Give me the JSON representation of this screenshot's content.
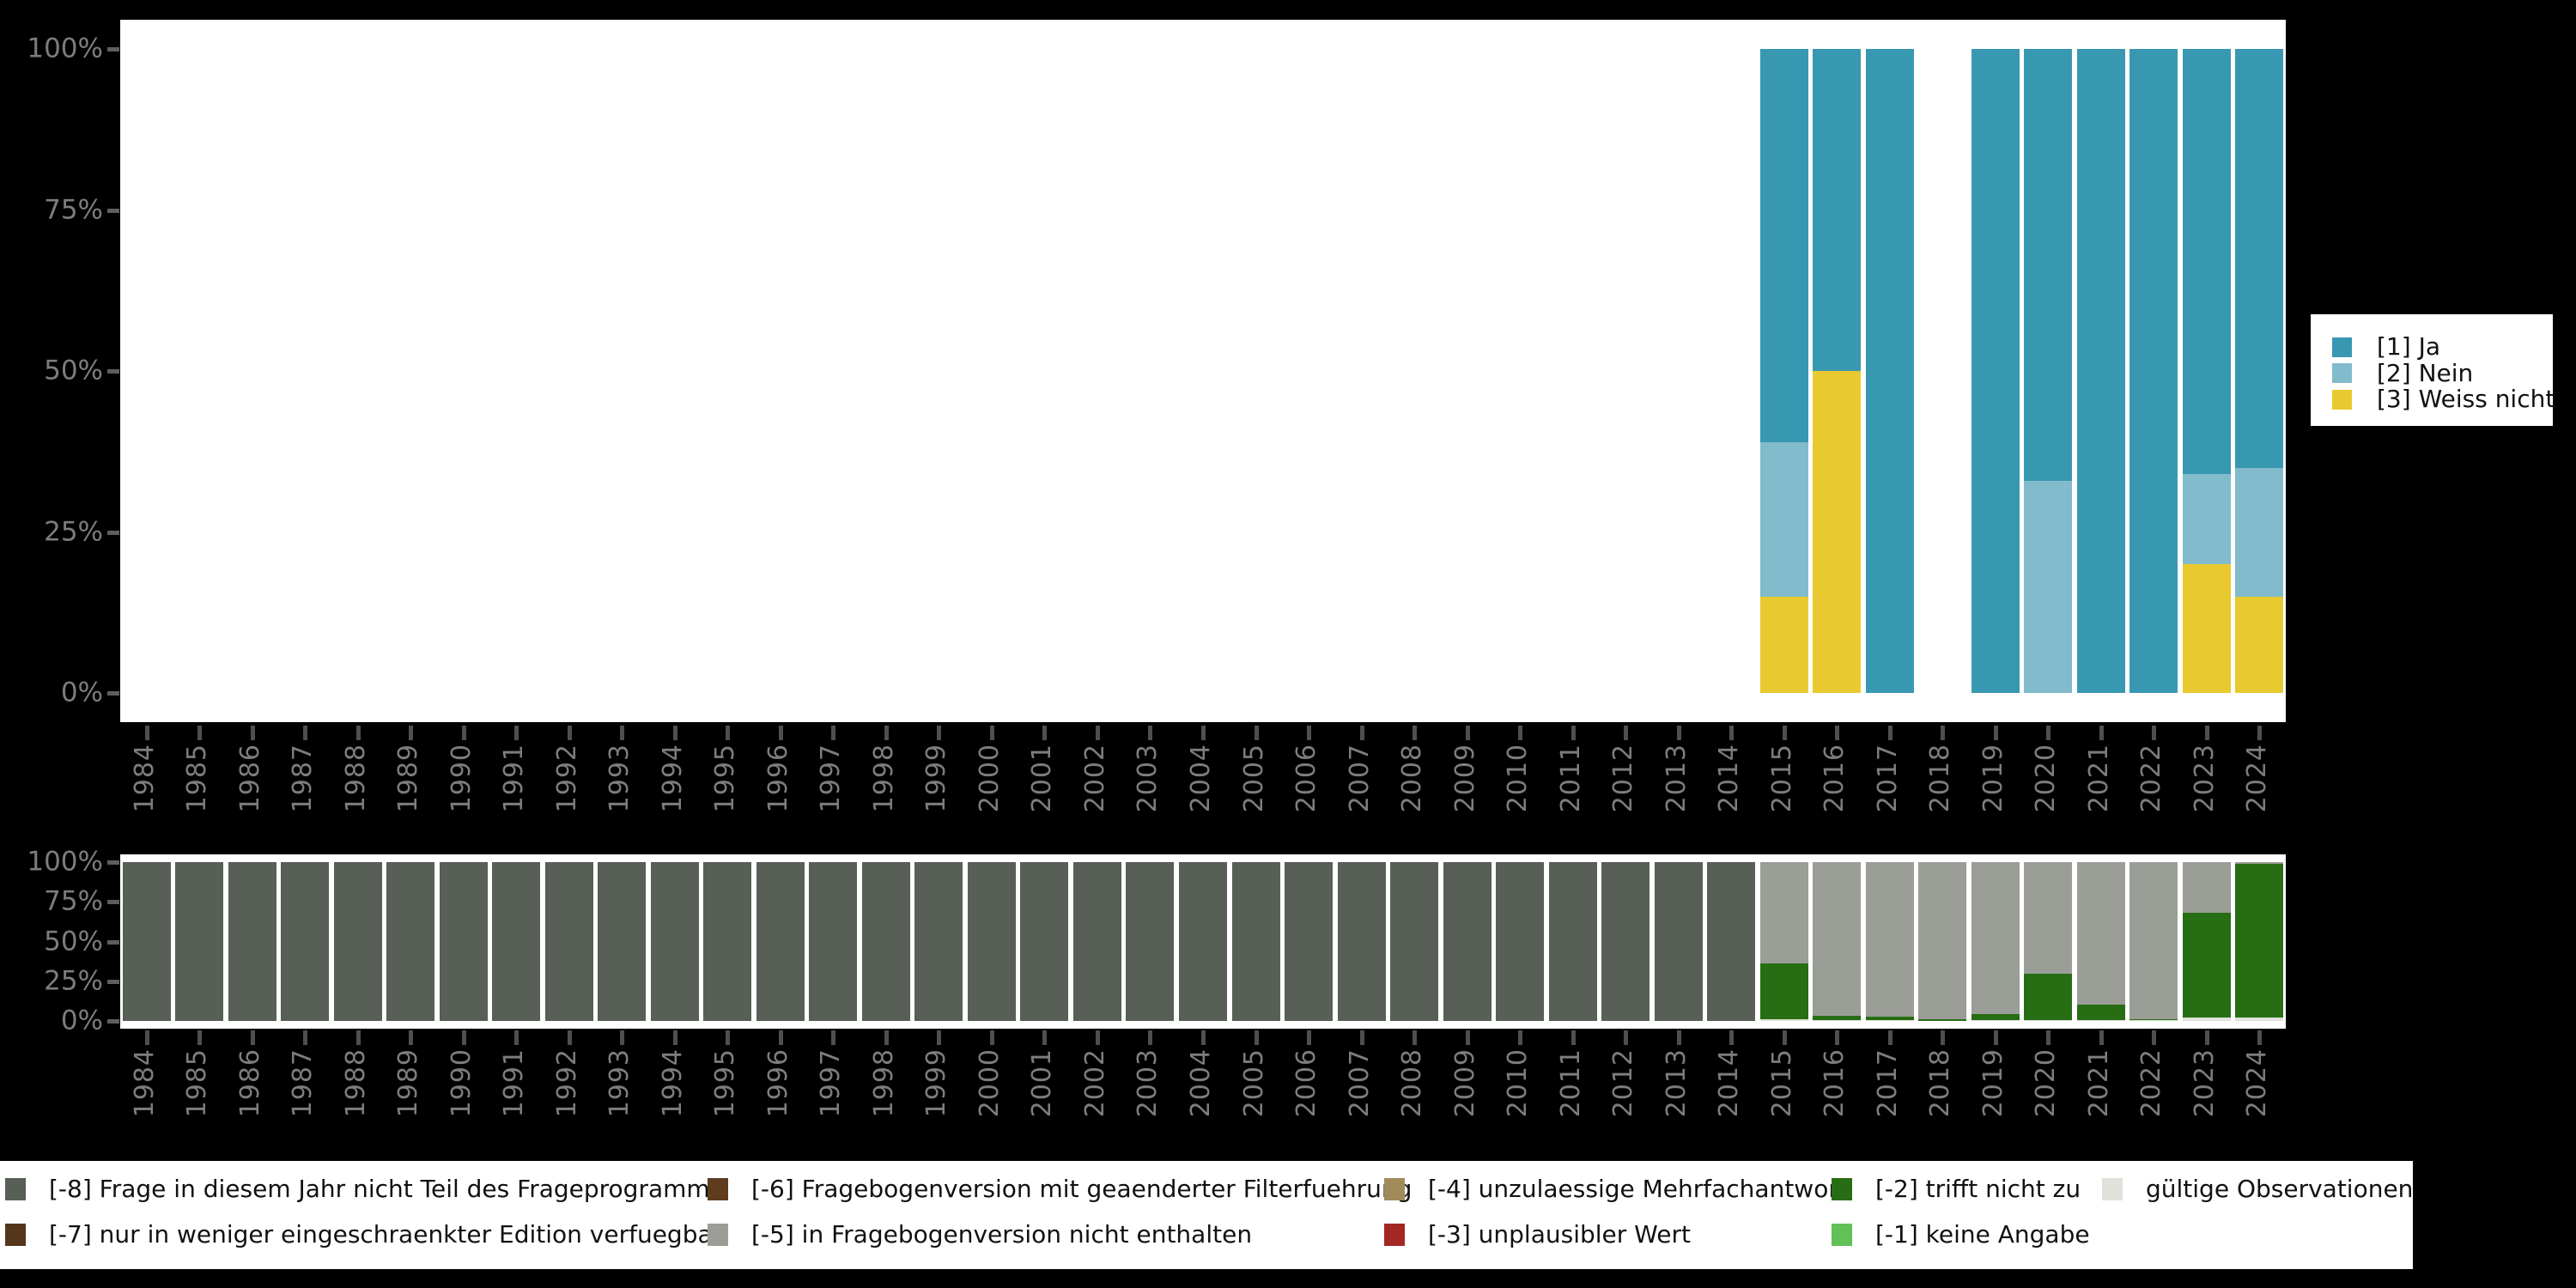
{
  "colors": {
    "background": "#000000",
    "panel": "#ffffff",
    "axis_text": "#7d7d7d",
    "tick": "#4f4f4f",
    "ja": "#3998b1",
    "nein": "#82bbcb",
    "weiss_nicht": "#e8ca30",
    "m8": "#575f56",
    "m7": "#53361b",
    "m6": "#5f3c1e",
    "m5": "#9a9e97",
    "m4": "#a28b5b",
    "m3": "#a32723",
    "m2": "#276d13",
    "m1": "#62c156",
    "valid": "#dfe2da"
  },
  "years": [
    1984,
    1985,
    1986,
    1987,
    1988,
    1989,
    1990,
    1991,
    1992,
    1993,
    1994,
    1995,
    1996,
    1997,
    1998,
    1999,
    2000,
    2001,
    2002,
    2003,
    2004,
    2005,
    2006,
    2007,
    2008,
    2009,
    2010,
    2011,
    2012,
    2013,
    2014,
    2015,
    2016,
    2017,
    2018,
    2019,
    2020,
    2021,
    2022,
    2023,
    2024
  ],
  "y_tick_labels": [
    "0%",
    "25%",
    "50%",
    "75%",
    "100%"
  ],
  "y_tick_values": [
    0,
    25,
    50,
    75,
    100
  ],
  "top_legend": [
    {
      "label": "[1] Ja",
      "color_key": "ja"
    },
    {
      "label": "[2] Nein",
      "color_key": "nein"
    },
    {
      "label": "[3] Weiss nicht",
      "color_key": "weiss_nicht"
    }
  ],
  "missing_legend_columns": [
    [
      {
        "label": "[-8] Frage in diesem Jahr nicht Teil des Frageprogramms",
        "color_key": "m8"
      },
      {
        "label": "[-7] nur in weniger eingeschraenkter Edition verfuegbar",
        "color_key": "m7"
      }
    ],
    [
      {
        "label": "[-6] Fragebogenversion mit geaenderter Filterfuehrung",
        "color_key": "m6"
      },
      {
        "label": "[-5] in Fragebogenversion nicht enthalten",
        "color_key": "m5"
      }
    ],
    [
      {
        "label": "[-4] unzulaessige Mehrfachantwort",
        "color_key": "m4"
      },
      {
        "label": "[-3] unplausibler Wert",
        "color_key": "m3"
      }
    ],
    [
      {
        "label": "[-2] trifft nicht zu",
        "color_key": "m2"
      },
      {
        "label": "[-1] keine Angabe",
        "color_key": "m1"
      }
    ],
    [
      {
        "label": "gültige Observationen",
        "color_key": "valid"
      }
    ]
  ],
  "chart_data": [
    {
      "type": "bar",
      "stacked": true,
      "title": "",
      "xlabel": "",
      "ylabel": "",
      "ylim": [
        0,
        100
      ],
      "grid": false,
      "legend_position": "right",
      "y_tick_labels": [
        "0%",
        "25%",
        "50%",
        "75%",
        "100%"
      ],
      "categories": [
        1984,
        1985,
        1986,
        1987,
        1988,
        1989,
        1990,
        1991,
        1992,
        1993,
        1994,
        1995,
        1996,
        1997,
        1998,
        1999,
        2000,
        2001,
        2002,
        2003,
        2004,
        2005,
        2006,
        2007,
        2008,
        2009,
        2010,
        2011,
        2012,
        2013,
        2014,
        2015,
        2016,
        2017,
        2018,
        2019,
        2020,
        2021,
        2022,
        2023,
        2024
      ],
      "series": [
        {
          "name": "[1] Ja",
          "color_key": "ja",
          "values_by_year": {
            "2015": 61,
            "2016": 50,
            "2017": 100,
            "2019": 100,
            "2020": 67,
            "2021": 100,
            "2022": 100,
            "2023": 66,
            "2024": 65
          }
        },
        {
          "name": "[2] Nein",
          "color_key": "nein",
          "values_by_year": {
            "2015": 24,
            "2020": 33,
            "2023": 14,
            "2024": 20
          }
        },
        {
          "name": "[3] Weiss nicht",
          "color_key": "weiss_nicht",
          "values_by_year": {
            "2015": 15,
            "2016": 50,
            "2023": 20,
            "2024": 15
          }
        }
      ],
      "stack_order_bottom_to_top": [
        "[3] Weiss nicht",
        "[2] Nein",
        "[1] Ja"
      ]
    },
    {
      "type": "bar",
      "stacked": true,
      "title": "",
      "xlabel": "",
      "ylabel": "",
      "ylim": [
        0,
        100
      ],
      "grid": false,
      "legend_position": "bottom",
      "y_tick_labels": [
        "0%",
        "25%",
        "50%",
        "75%",
        "100%"
      ],
      "categories": [
        1984,
        1985,
        1986,
        1987,
        1988,
        1989,
        1990,
        1991,
        1992,
        1993,
        1994,
        1995,
        1996,
        1997,
        1998,
        1999,
        2000,
        2001,
        2002,
        2003,
        2004,
        2005,
        2006,
        2007,
        2008,
        2009,
        2010,
        2011,
        2012,
        2013,
        2014,
        2015,
        2016,
        2017,
        2018,
        2019,
        2020,
        2021,
        2022,
        2023,
        2024
      ],
      "series": [
        {
          "name": "[-8] Frage in diesem Jahr nicht Teil des Frageprogramms",
          "color_key": "m8",
          "values_by_year": {
            "1984": 100,
            "1985": 100,
            "1986": 100,
            "1987": 100,
            "1988": 100,
            "1989": 100,
            "1990": 100,
            "1991": 100,
            "1992": 100,
            "1993": 100,
            "1994": 100,
            "1995": 100,
            "1996": 100,
            "1997": 100,
            "1998": 100,
            "1999": 100,
            "2000": 100,
            "2001": 100,
            "2002": 100,
            "2003": 100,
            "2004": 100,
            "2005": 100,
            "2006": 100,
            "2007": 100,
            "2008": 100,
            "2009": 100,
            "2010": 100,
            "2011": 100,
            "2012": 100,
            "2013": 100,
            "2014": 100
          }
        },
        {
          "name": "[-5] in Fragebogenversion nicht enthalten",
          "color_key": "m5",
          "values_by_year": {
            "2015": 64,
            "2016": 96.5,
            "2017": 97.5,
            "2018": 99,
            "2019": 95.5,
            "2020": 70.5,
            "2021": 89.5,
            "2022": 98.7,
            "2023": 32,
            "2024": 1
          }
        },
        {
          "name": "[-2] trifft nicht zu",
          "color_key": "m2",
          "values_by_year": {
            "2015": 35,
            "2016": 3,
            "2017": 2,
            "2018": 1,
            "2019": 4,
            "2020": 29,
            "2021": 10,
            "2022": 1,
            "2023": 66,
            "2024": 97
          }
        },
        {
          "name": "gültige Observationen",
          "color_key": "valid",
          "values_by_year": {
            "2015": 1,
            "2016": 0.5,
            "2017": 0.5,
            "2019": 0.5,
            "2020": 0.5,
            "2021": 0.5,
            "2022": 0.3,
            "2023": 2,
            "2024": 2
          }
        }
      ],
      "stack_order_bottom_to_top": [
        "gültige Observationen",
        "[-2] trifft nicht zu",
        "[-5] in Fragebogenversion nicht enthalten",
        "[-8] Frage in diesem Jahr nicht Teil des Frageprogramms"
      ]
    }
  ]
}
